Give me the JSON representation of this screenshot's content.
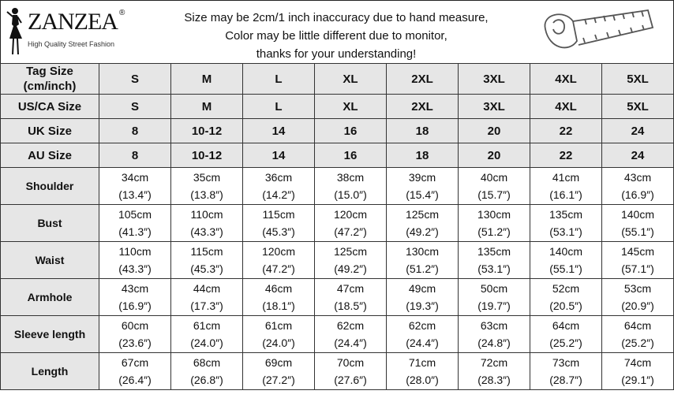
{
  "brand": {
    "name": "ZANZEA",
    "registered": "®",
    "tagline": "High Quality Street Fashion"
  },
  "notice": [
    "Size may be 2cm/1 inch inaccuracy due to hand measure,",
    "Color may be little different due to monitor,",
    "thanks for your understanding!"
  ],
  "icons": {
    "logo": "woman-silhouette-icon",
    "tape": "measuring-tape-icon"
  },
  "header_rows": [
    {
      "label": "Tag Size (cm/inch)",
      "values": [
        "S",
        "M",
        "L",
        "XL",
        "2XL",
        "3XL",
        "4XL",
        "5XL"
      ]
    },
    {
      "label": "US/CA Size",
      "values": [
        "S",
        "M",
        "L",
        "XL",
        "2XL",
        "3XL",
        "4XL",
        "5XL"
      ]
    },
    {
      "label": "UK Size",
      "values": [
        "8",
        "10-12",
        "14",
        "16",
        "18",
        "20",
        "22",
        "24"
      ]
    },
    {
      "label": "AU Size",
      "values": [
        "8",
        "10-12",
        "14",
        "16",
        "18",
        "20",
        "22",
        "24"
      ]
    }
  ],
  "measure_rows": [
    {
      "label": "Shoulder",
      "cm": [
        "34cm",
        "35cm",
        "36cm",
        "38cm",
        "39cm",
        "40cm",
        "41cm",
        "43cm"
      ],
      "inch": [
        "(13.4″)",
        "(13.8″)",
        "(14.2″)",
        "(15.0″)",
        "(15.4″)",
        "(15.7″)",
        "(16.1″)",
        "(16.9″)"
      ]
    },
    {
      "label": "Bust",
      "cm": [
        "105cm",
        "110cm",
        "115cm",
        "120cm",
        "125cm",
        "130cm",
        "135cm",
        "140cm"
      ],
      "inch": [
        "(41.3″)",
        "(43.3″)",
        "(45.3″)",
        "(47.2″)",
        "(49.2″)",
        "(51.2″)",
        "(53.1″)",
        "(55.1″)"
      ]
    },
    {
      "label": "Waist",
      "cm": [
        "110cm",
        "115cm",
        "120cm",
        "125cm",
        "130cm",
        "135cm",
        "140cm",
        "145cm"
      ],
      "inch": [
        "(43.3″)",
        "(45.3″)",
        "(47.2″)",
        "(49.2″)",
        "(51.2″)",
        "(53.1″)",
        "(55.1″)",
        "(57.1″)"
      ]
    },
    {
      "label": "Armhole",
      "cm": [
        "43cm",
        "44cm",
        "46cm",
        "47cm",
        "49cm",
        "50cm",
        "52cm",
        "53cm"
      ],
      "inch": [
        "(16.9″)",
        "(17.3″)",
        "(18.1″)",
        "(18.5″)",
        "(19.3″)",
        "(19.7″)",
        "(20.5″)",
        "(20.9″)"
      ]
    },
    {
      "label": "Sleeve length",
      "cm": [
        "60cm",
        "61cm",
        "61cm",
        "62cm",
        "62cm",
        "63cm",
        "64cm",
        "64cm"
      ],
      "inch": [
        "(23.6″)",
        "(24.0″)",
        "(24.0″)",
        "(24.4″)",
        "(24.4″)",
        "(24.8″)",
        "(25.2″)",
        "(25.2″)"
      ]
    },
    {
      "label": "Length",
      "cm": [
        "67cm",
        "68cm",
        "69cm",
        "70cm",
        "71cm",
        "72cm",
        "73cm",
        "74cm"
      ],
      "inch": [
        "(26.4″)",
        "(26.8″)",
        "(27.2″)",
        "(27.6″)",
        "(28.0″)",
        "(28.3″)",
        "(28.7″)",
        "(29.1″)"
      ]
    }
  ]
}
